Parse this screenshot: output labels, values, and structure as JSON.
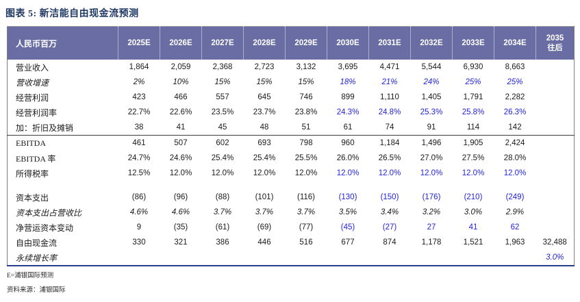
{
  "title": "图表 5: 新洁能自由现金流预测",
  "colors": {
    "title_navy": "#1f3864",
    "header_bg": "#6a6da3",
    "forecast_blue": "#2323dc",
    "bottom_border_blue": "#27408b"
  },
  "table": {
    "unit_header": "人民币百万",
    "year_headers": [
      "2025E",
      "2026E",
      "2027E",
      "2028E",
      "2029E",
      "2030E",
      "2031E",
      "2032E",
      "2033E",
      "2034E"
    ],
    "last_header_line1": "2035",
    "last_header_line2": "往后",
    "rows": [
      {
        "label": "营业收入",
        "italic": false,
        "line_above": false,
        "gap_above": false,
        "values": [
          "1,864",
          "2,059",
          "2,368",
          "2,723",
          "3,132",
          "3,695",
          "4,471",
          "5,544",
          "6,930",
          "8,663",
          ""
        ],
        "blue_cols": []
      },
      {
        "label": "营收增速",
        "italic": true,
        "line_above": false,
        "gap_above": false,
        "values": [
          "2%",
          "10%",
          "15%",
          "15%",
          "15%",
          "18%",
          "21%",
          "24%",
          "25%",
          "25%",
          ""
        ],
        "blue_cols": [
          5,
          6,
          7,
          8,
          9
        ]
      },
      {
        "label": "经营利润",
        "italic": false,
        "line_above": false,
        "gap_above": false,
        "values": [
          "423",
          "466",
          "557",
          "645",
          "746",
          "899",
          "1,110",
          "1,405",
          "1,791",
          "2,282",
          ""
        ],
        "blue_cols": []
      },
      {
        "label": "经营利润率",
        "italic": false,
        "line_above": false,
        "gap_above": false,
        "values": [
          "22.7%",
          "22.6%",
          "23.5%",
          "23.7%",
          "23.8%",
          "24.3%",
          "24.8%",
          "25.3%",
          "25.8%",
          "26.3%",
          ""
        ],
        "blue_cols": [
          5,
          6,
          7,
          8,
          9
        ]
      },
      {
        "label": "加：折旧及摊销",
        "italic": false,
        "line_above": false,
        "gap_above": false,
        "values": [
          "38",
          "41",
          "45",
          "48",
          "51",
          "61",
          "74",
          "91",
          "114",
          "142",
          ""
        ],
        "blue_cols": []
      },
      {
        "label": "EBITDA",
        "italic": false,
        "line_above": true,
        "gap_above": false,
        "values": [
          "461",
          "507",
          "602",
          "693",
          "798",
          "960",
          "1,184",
          "1,496",
          "1,905",
          "2,424",
          ""
        ],
        "blue_cols": []
      },
      {
        "label": "EBITDA 率",
        "italic": false,
        "line_above": false,
        "gap_above": false,
        "values": [
          "24.7%",
          "24.6%",
          "25.4%",
          "25.4%",
          "25.5%",
          "26.0%",
          "26.5%",
          "27.0%",
          "27.5%",
          "28.0%",
          ""
        ],
        "blue_cols": []
      },
      {
        "label": "所得税率",
        "italic": false,
        "line_above": false,
        "gap_above": false,
        "values": [
          "12.5%",
          "12.0%",
          "12.0%",
          "12.0%",
          "12.0%",
          "12.0%",
          "12.0%",
          "12.0%",
          "12.0%",
          "12.0%",
          ""
        ],
        "blue_cols": [
          5,
          6,
          7,
          8,
          9
        ]
      },
      {
        "label": "资本支出",
        "italic": false,
        "line_above": false,
        "gap_above": true,
        "values": [
          "(86)",
          "(96)",
          "(88)",
          "(101)",
          "(116)",
          "(130)",
          "(150)",
          "(176)",
          "(210)",
          "(249)",
          ""
        ],
        "blue_cols": [
          5,
          6,
          7,
          8,
          9
        ]
      },
      {
        "label": "资本支出占营收比",
        "italic": true,
        "line_above": false,
        "gap_above": false,
        "values": [
          "4.6%",
          "4.6%",
          "3.7%",
          "3.7%",
          "3.7%",
          "3.5%",
          "3.4%",
          "3.2%",
          "3.0%",
          "2.9%",
          ""
        ],
        "blue_cols": []
      },
      {
        "label": "净营运资本变动",
        "italic": false,
        "line_above": false,
        "gap_above": false,
        "values": [
          "9",
          "(35)",
          "(61)",
          "(69)",
          "(77)",
          "(45)",
          "(27)",
          "27",
          "41",
          "62",
          ""
        ],
        "blue_cols": [
          5,
          6,
          7,
          8,
          9
        ]
      },
      {
        "label": "自由现金流",
        "italic": false,
        "line_above": false,
        "gap_above": false,
        "values": [
          "330",
          "321",
          "386",
          "446",
          "516",
          "677",
          "874",
          "1,178",
          "1,521",
          "1,963",
          "32,488"
        ],
        "blue_cols": []
      },
      {
        "label": "永续增长率",
        "italic": true,
        "line_above": false,
        "gap_above": false,
        "values": [
          "",
          "",
          "",
          "",
          "",
          "",
          "",
          "",
          "",
          "",
          "3.0%"
        ],
        "blue_cols": [
          10
        ]
      }
    ]
  },
  "footnotes": {
    "estimate_note": "E=浦银国际预测",
    "source_note": "资料来源：浦银国际"
  }
}
